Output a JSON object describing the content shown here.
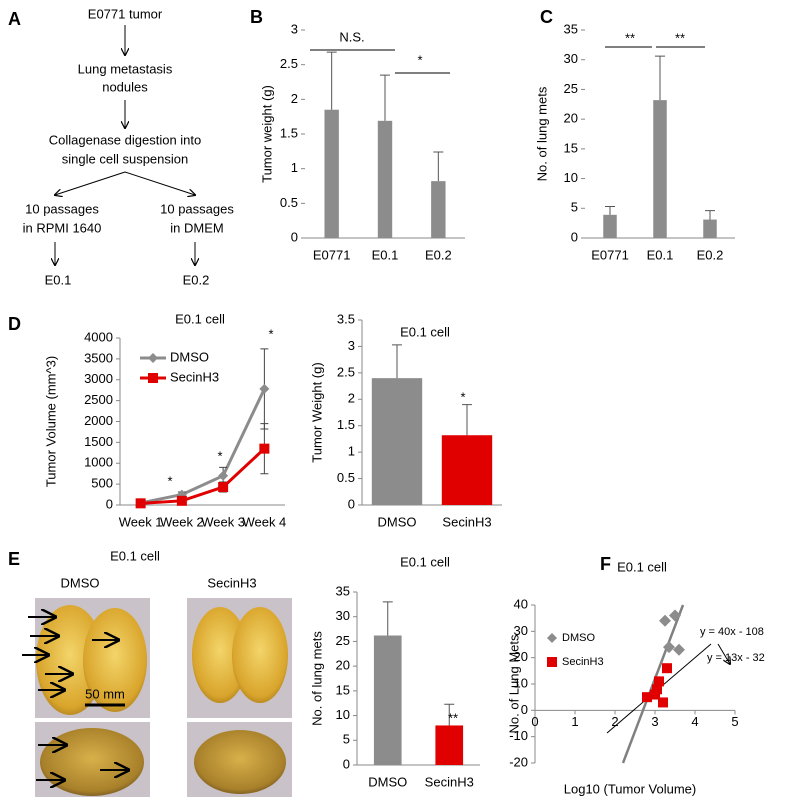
{
  "diagram": {
    "panel": "A",
    "nodes": [
      {
        "lines": [
          "E0771 tumor"
        ]
      },
      {
        "lines": [
          "Lung metastasis",
          "nodules"
        ]
      },
      {
        "lines": [
          "Collagenase digestion into",
          "single cell suspension"
        ]
      },
      {
        "lines": [
          "10 passages",
          "in RPMI 1640"
        ]
      },
      {
        "lines": [
          "10 passages",
          "in DMEM"
        ]
      },
      {
        "lines": [
          "E0.1"
        ]
      },
      {
        "lines": [
          "E0.2"
        ]
      }
    ]
  },
  "photos": {
    "panel": "E",
    "title": "E0.1 cell",
    "columns": [
      "DMSO",
      "SecinH3"
    ],
    "scale_bar": "50 mm"
  },
  "chart_data": [
    {
      "type": "bar",
      "panel": "B",
      "categories": [
        "E0771",
        "E0.1",
        "E0.2"
      ],
      "values": [
        1.85,
        1.69,
        0.82
      ],
      "errors": [
        0.83,
        0.66,
        0.42
      ],
      "color": "#8c8c8c",
      "ylabel": "Tumor weight (g)",
      "ylim": [
        0,
        3
      ],
      "yticks": [
        0,
        0.5,
        1,
        1.5,
        2,
        2.5,
        3
      ],
      "annotations": [
        "N.S.",
        "*"
      ]
    },
    {
      "type": "bar",
      "panel": "C",
      "categories": [
        "E0771",
        "E0.1",
        "E0.2"
      ],
      "values": [
        3.9,
        23.2,
        3.1
      ],
      "errors": [
        1.4,
        7.4,
        1.5
      ],
      "color": "#8c8c8c",
      "ylabel": "No. of lung mets",
      "ylim": [
        0,
        35
      ],
      "yticks": [
        0,
        5,
        10,
        15,
        20,
        25,
        30,
        35
      ],
      "annotations": [
        "**",
        "**"
      ]
    },
    {
      "type": "line",
      "panel": "D",
      "title": "E0.1 cell",
      "categories": [
        "Week 1",
        "Week 2",
        "Week 3",
        "Week 4"
      ],
      "series": [
        {
          "name": "DMSO",
          "color": "#8c8c8c",
          "values": [
            50,
            250,
            700,
            2780
          ],
          "errors": [
            20,
            60,
            200,
            960
          ]
        },
        {
          "name": "SecinH3",
          "color": "#e00000",
          "values": [
            40,
            100,
            430,
            1350
          ],
          "errors": [
            20,
            40,
            120,
            600
          ]
        }
      ],
      "ylabel": "Tumor Volume (mm^3)",
      "ylim": [
        0,
        4000
      ],
      "yticks": [
        0,
        500,
        1000,
        1500,
        2000,
        2500,
        3000,
        3500,
        4000
      ],
      "annotations": [
        "*",
        "*",
        "*"
      ]
    },
    {
      "type": "bar",
      "title": "E0.1 cell",
      "categories": [
        "DMSO",
        "SecinH3"
      ],
      "values": [
        2.4,
        1.32
      ],
      "errors": [
        0.63,
        0.58
      ],
      "colors": [
        "#8c8c8c",
        "#e00000"
      ],
      "ylabel": "Tumor Weight (g)",
      "ylim": [
        0,
        3.5
      ],
      "yticks": [
        0,
        0.5,
        1,
        1.5,
        2,
        2.5,
        3,
        3.5
      ],
      "annotations": [
        "*"
      ]
    },
    {
      "type": "bar",
      "title": "E0.1 cell",
      "categories": [
        "DMSO",
        "SecinH3"
      ],
      "values": [
        26.2,
        8
      ],
      "errors": [
        6.8,
        4.3
      ],
      "colors": [
        "#8c8c8c",
        "#e00000"
      ],
      "ylabel": "No. of lung mets",
      "ylim": [
        0,
        35
      ],
      "yticks": [
        0,
        5,
        10,
        15,
        20,
        25,
        30,
        35
      ],
      "annotations": [
        "**"
      ]
    },
    {
      "type": "scatter",
      "panel": "F",
      "title": "E0.1 cell",
      "series": [
        {
          "name": "DMSO",
          "color": "#8c8c8c",
          "x": [
            3.25,
            3.5,
            3.35,
            3.6
          ],
          "y": [
            34,
            36,
            24,
            23
          ]
        },
        {
          "name": "SecinH3",
          "color": "#e00000",
          "x": [
            2.8,
            3.0,
            3.05,
            3.1,
            3.2,
            3.3
          ],
          "y": [
            5,
            6,
            8,
            11,
            3,
            16
          ]
        }
      ],
      "trendlines": [
        {
          "label": "y = 40x - 108",
          "slope": 40,
          "intercept": -108,
          "color": "#808080"
        },
        {
          "label": "y = 13x - 32",
          "slope": 13,
          "intercept": -32,
          "color": "#000000"
        }
      ],
      "xlabel": "Log10 (Tumor Volume)",
      "ylabel": "No. of Lung Mets",
      "xlim": [
        0,
        5
      ],
      "ylim": [
        -20,
        40
      ],
      "xticks": [
        0,
        1,
        2,
        3,
        4,
        5
      ],
      "yticks": [
        -20,
        -10,
        0,
        10,
        20,
        30,
        40
      ]
    }
  ]
}
